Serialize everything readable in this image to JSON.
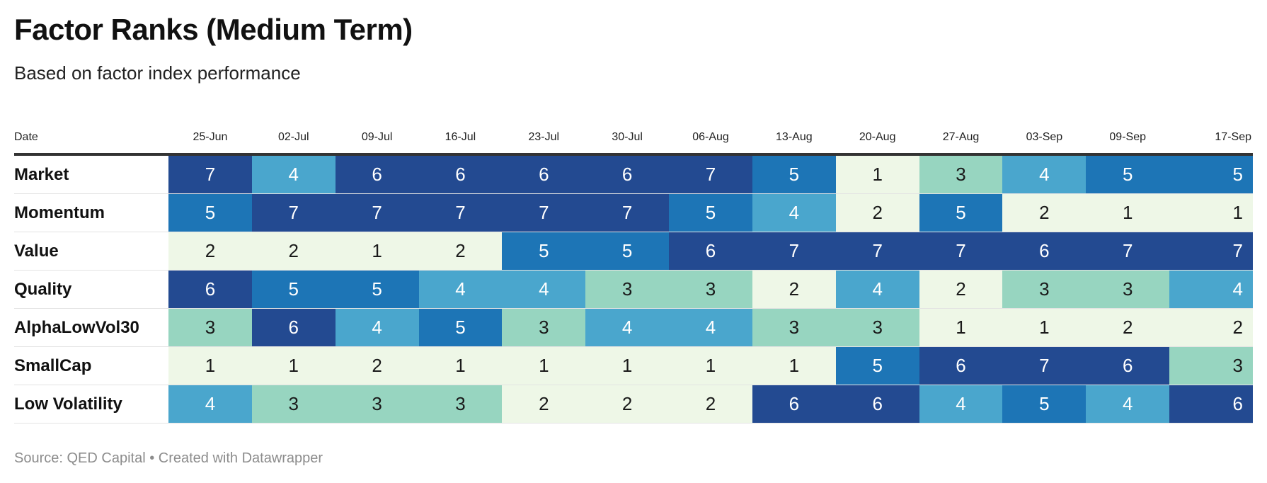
{
  "title": "Factor Ranks (Medium Term)",
  "subtitle": "Based on factor index performance",
  "footer": "Source: QED Capital • Created with Datawrapper",
  "colors": {
    "rank_1": "#eef7e7",
    "rank_2": "#eef7e7",
    "rank_3": "#97d5c0",
    "rank_4": "#4aa6cd",
    "rank_5": "#1d75b6",
    "rank_6": "#234a91",
    "rank_7": "#234a91",
    "dark_text": "#1a1a1a",
    "light_text": "#ffffff"
  },
  "chart_data": {
    "type": "heatmap",
    "title": "Factor Ranks (Medium Term)",
    "subtitle": "Based on factor index performance",
    "row_header": "Date",
    "columns": [
      "25-Jun",
      "02-Jul",
      "09-Jul",
      "16-Jul",
      "23-Jul",
      "30-Jul",
      "06-Aug",
      "13-Aug",
      "20-Aug",
      "27-Aug",
      "03-Sep",
      "09-Sep",
      "17-Sep"
    ],
    "rows": [
      {
        "name": "Market",
        "values": [
          7,
          4,
          6,
          6,
          6,
          6,
          7,
          5,
          1,
          3,
          4,
          5,
          5
        ]
      },
      {
        "name": "Momentum",
        "values": [
          5,
          7,
          7,
          7,
          7,
          7,
          5,
          4,
          2,
          5,
          2,
          1,
          1
        ]
      },
      {
        "name": "Value",
        "values": [
          2,
          2,
          1,
          2,
          5,
          5,
          6,
          7,
          7,
          7,
          6,
          7,
          7
        ]
      },
      {
        "name": "Quality",
        "values": [
          6,
          5,
          5,
          4,
          4,
          3,
          3,
          2,
          4,
          2,
          3,
          3,
          4
        ]
      },
      {
        "name": "AlphaLowVol30",
        "values": [
          3,
          6,
          4,
          5,
          3,
          4,
          4,
          3,
          3,
          1,
          1,
          2,
          2
        ]
      },
      {
        "name": "SmallCap",
        "values": [
          1,
          1,
          2,
          1,
          1,
          1,
          1,
          1,
          5,
          6,
          7,
          6,
          3
        ]
      },
      {
        "name": "Low Volatility",
        "values": [
          4,
          3,
          3,
          3,
          2,
          2,
          2,
          6,
          6,
          4,
          5,
          4,
          6
        ]
      }
    ]
  }
}
